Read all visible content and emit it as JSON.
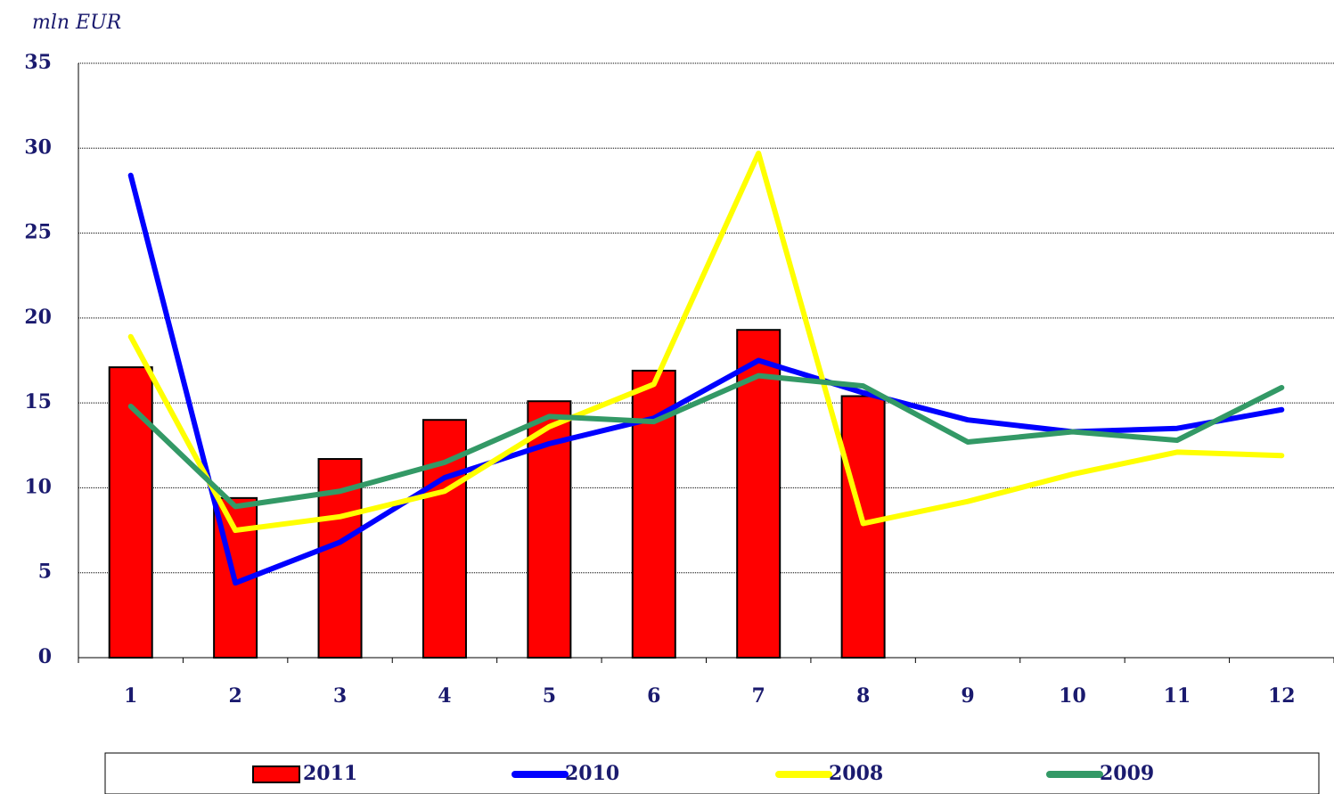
{
  "chart_data": {
    "type": "bar",
    "y_label": "mln EUR",
    "categories": [
      "1",
      "2",
      "3",
      "4",
      "5",
      "6",
      "7",
      "8",
      "9",
      "10",
      "11",
      "12"
    ],
    "series": [
      {
        "name": "2011",
        "type": "bar",
        "color": "#ff0000",
        "values": [
          17.1,
          9.4,
          11.7,
          14.0,
          15.1,
          16.9,
          19.3,
          15.4,
          null,
          null,
          null,
          null
        ]
      },
      {
        "name": "2010",
        "type": "line",
        "color": "#0000ff",
        "values": [
          28.4,
          4.4,
          6.8,
          10.6,
          12.6,
          14.1,
          17.5,
          15.6,
          14.0,
          13.3,
          13.5,
          14.6
        ]
      },
      {
        "name": "2008",
        "type": "line",
        "color": "#ffff00",
        "values": [
          18.9,
          7.5,
          8.3,
          9.8,
          13.6,
          16.1,
          29.7,
          7.9,
          9.2,
          10.8,
          12.1,
          11.9
        ]
      },
      {
        "name": "2009",
        "type": "line",
        "color": "#339966",
        "values": [
          14.8,
          8.9,
          9.8,
          11.5,
          14.2,
          13.9,
          16.6,
          16.0,
          12.7,
          13.3,
          12.8,
          15.9
        ]
      }
    ],
    "ylim": [
      0,
      35
    ],
    "yticks": [
      0,
      5,
      10,
      15,
      20,
      25,
      30,
      35
    ],
    "grid": true
  }
}
